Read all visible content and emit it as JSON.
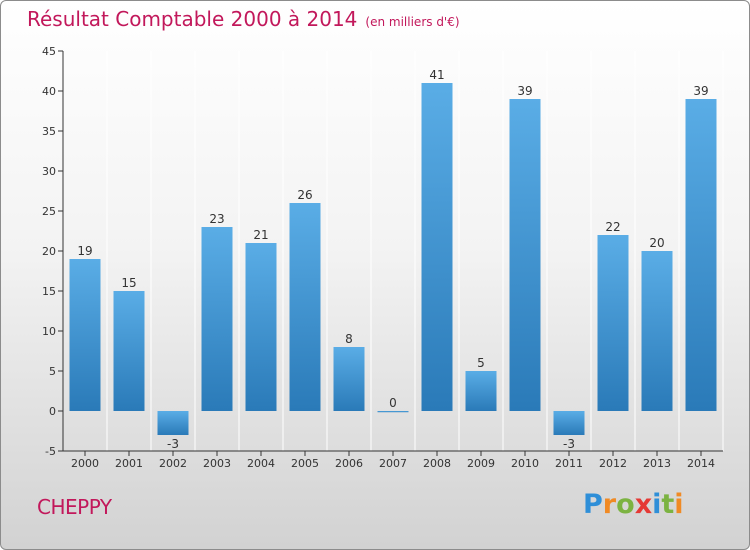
{
  "header": {
    "title": "Résultat Comptable 2000 à 2014",
    "subtitle": "(en milliers d'€)"
  },
  "footer": {
    "commune": "CHEPPY",
    "logo_text": "Proxiti",
    "logo_letters": [
      "P",
      "r",
      "o",
      "x",
      "i",
      "t",
      "i"
    ]
  },
  "colors": {
    "title": "#c2185b",
    "bar_top": "#5aade6",
    "bar_bottom": "#2a7ab8",
    "axis": "#333333",
    "grid": "#ffffff"
  },
  "chart_data": {
    "type": "bar",
    "title": "Résultat Comptable 2000 à 2014",
    "subtitle": "(en milliers d'€)",
    "categories": [
      "2000",
      "2001",
      "2002",
      "2003",
      "2004",
      "2005",
      "2006",
      "2007",
      "2008",
      "2009",
      "2010",
      "2011",
      "2012",
      "2013",
      "2014"
    ],
    "values": [
      19,
      15,
      -3,
      23,
      21,
      26,
      8,
      0,
      41,
      5,
      39,
      -3,
      22,
      20,
      39
    ],
    "ylim": [
      -5,
      45
    ],
    "yticks": [
      -5,
      0,
      5,
      10,
      15,
      20,
      25,
      30,
      35,
      40,
      45
    ],
    "grid": "vertical",
    "data_labels": true
  }
}
